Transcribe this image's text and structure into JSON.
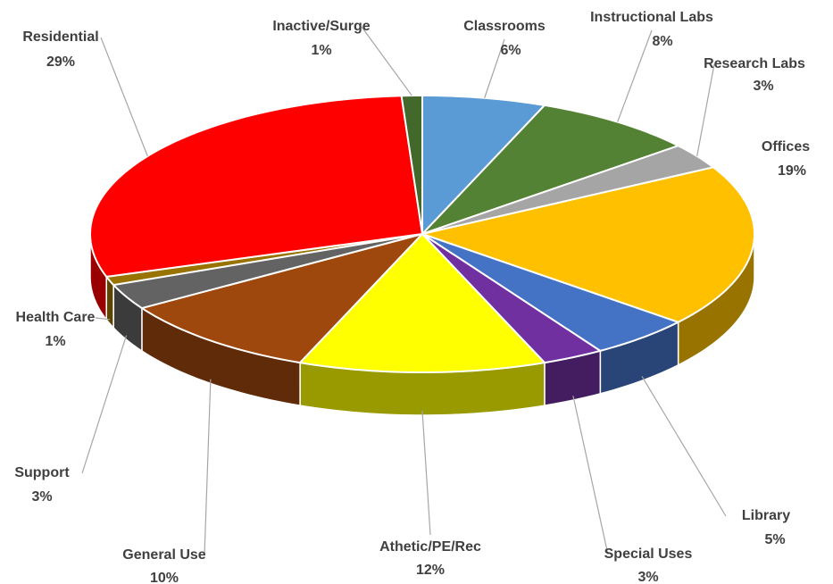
{
  "chart_data": {
    "type": "pie",
    "categories": [
      "Classrooms",
      "Instructional Labs",
      "Research Labs",
      "Offices",
      "Library",
      "Special Uses",
      "Athetic/PE/Rec",
      "General Use",
      "Support",
      "Health Care",
      "Residential",
      "Inactive/Surge"
    ],
    "values": [
      6,
      8,
      3,
      19,
      5,
      3,
      12,
      10,
      3,
      1,
      29,
      1
    ],
    "value_labels": [
      "6%",
      "8%",
      "3%",
      "19%",
      "5%",
      "3%",
      "12%",
      "10%",
      "3%",
      "1%",
      "29%",
      "1%"
    ],
    "colors": [
      "#5b9bd5",
      "#548235",
      "#a5a5a5",
      "#ffc000",
      "#4472c4",
      "#7030a0",
      "#ffff00",
      "#9e480e",
      "#636363",
      "#997300",
      "#ff0000",
      "#43682b"
    ]
  }
}
